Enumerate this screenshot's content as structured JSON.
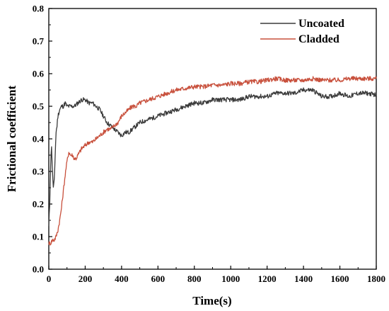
{
  "chart_data": {
    "type": "line",
    "title": "",
    "xlabel": "Time(s)",
    "ylabel": "Frictional coefficient",
    "xlim": [
      0,
      1800
    ],
    "ylim": [
      0,
      0.8
    ],
    "xticks": [
      "0",
      "200",
      "400",
      "600",
      "800",
      "1000",
      "1200",
      "1400",
      "1600",
      "1800"
    ],
    "yticks": [
      "0.0",
      "0.1",
      "0.2",
      "0.3",
      "0.4",
      "0.5",
      "0.6",
      "0.7",
      "0.8"
    ],
    "grid": false,
    "legend_position": "top-right",
    "series": [
      {
        "name": "Uncoated",
        "color": "#3a3a3a",
        "x": [
          0,
          5,
          10,
          15,
          20,
          25,
          30,
          35,
          40,
          45,
          50,
          55,
          60,
          70,
          80,
          90,
          100,
          120,
          140,
          160,
          180,
          200,
          220,
          240,
          260,
          280,
          300,
          320,
          340,
          360,
          380,
          400,
          420,
          440,
          460,
          480,
          500,
          550,
          600,
          650,
          700,
          750,
          800,
          850,
          900,
          950,
          1000,
          1050,
          1100,
          1150,
          1200,
          1250,
          1300,
          1350,
          1400,
          1450,
          1500,
          1550,
          1600,
          1650,
          1700,
          1750,
          1800
        ],
        "y": [
          0.13,
          0.2,
          0.32,
          0.38,
          0.3,
          0.25,
          0.27,
          0.35,
          0.42,
          0.44,
          0.47,
          0.48,
          0.49,
          0.5,
          0.5,
          0.51,
          0.5,
          0.5,
          0.5,
          0.51,
          0.52,
          0.52,
          0.51,
          0.51,
          0.5,
          0.49,
          0.47,
          0.45,
          0.44,
          0.43,
          0.42,
          0.41,
          0.42,
          0.42,
          0.43,
          0.44,
          0.45,
          0.46,
          0.47,
          0.48,
          0.49,
          0.5,
          0.51,
          0.51,
          0.52,
          0.52,
          0.52,
          0.52,
          0.53,
          0.53,
          0.53,
          0.54,
          0.54,
          0.54,
          0.55,
          0.55,
          0.53,
          0.53,
          0.54,
          0.53,
          0.54,
          0.54,
          0.535
        ]
      },
      {
        "name": "Cladded",
        "color": "#c8503c",
        "x": [
          0,
          10,
          20,
          30,
          40,
          50,
          60,
          70,
          80,
          90,
          100,
          110,
          120,
          130,
          140,
          150,
          160,
          180,
          200,
          220,
          240,
          260,
          280,
          300,
          320,
          340,
          360,
          380,
          400,
          420,
          440,
          460,
          480,
          500,
          550,
          600,
          650,
          700,
          750,
          800,
          850,
          900,
          950,
          1000,
          1050,
          1100,
          1150,
          1200,
          1250,
          1300,
          1350,
          1400,
          1450,
          1500,
          1550,
          1600,
          1650,
          1700,
          1750,
          1800
        ],
        "y": [
          0.08,
          0.08,
          0.09,
          0.09,
          0.1,
          0.12,
          0.15,
          0.19,
          0.24,
          0.29,
          0.33,
          0.36,
          0.35,
          0.35,
          0.34,
          0.34,
          0.35,
          0.37,
          0.38,
          0.39,
          0.39,
          0.4,
          0.41,
          0.42,
          0.43,
          0.43,
          0.44,
          0.45,
          0.47,
          0.48,
          0.49,
          0.5,
          0.5,
          0.51,
          0.52,
          0.53,
          0.54,
          0.55,
          0.555,
          0.56,
          0.56,
          0.565,
          0.565,
          0.57,
          0.57,
          0.575,
          0.575,
          0.58,
          0.585,
          0.58,
          0.58,
          0.58,
          0.585,
          0.58,
          0.58,
          0.58,
          0.585,
          0.585,
          0.585,
          0.585
        ]
      }
    ]
  }
}
